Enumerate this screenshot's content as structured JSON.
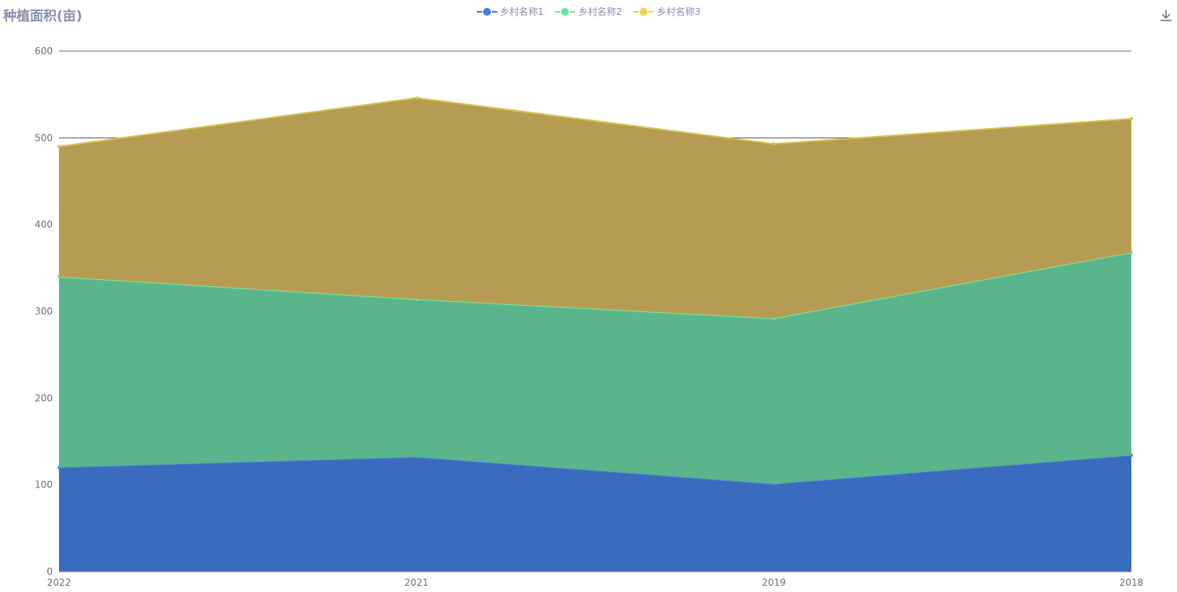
{
  "chart_data": {
    "type": "area",
    "title": "种植面积(亩)",
    "stacked": true,
    "categories": [
      "2022",
      "2021",
      "2019",
      "2018"
    ],
    "ylim": [
      0,
      600
    ],
    "yticks": [
      0,
      100,
      200,
      300,
      400,
      500,
      600
    ],
    "grid": true,
    "legend_position": "top-center",
    "series": [
      {
        "name": "乡村名称1",
        "values": [
          120,
          132,
          101,
          134
        ],
        "color": "#3a6bbf",
        "line_color": "#4a7fe0",
        "legend_color": "#3f7fe8"
      },
      {
        "name": "乡村名称2",
        "values": [
          220,
          182,
          191,
          234
        ],
        "color": "#5ab58c",
        "line_color": "#7be89e",
        "legend_color": "#6ee6a0"
      },
      {
        "name": "乡村名称3",
        "values": [
          150,
          232,
          201,
          154
        ],
        "color": "#b59c52",
        "line_color": "#d9c14a",
        "legend_color": "#f5d04a"
      }
    ]
  },
  "toolbar": {
    "download_icon": "download-icon"
  }
}
